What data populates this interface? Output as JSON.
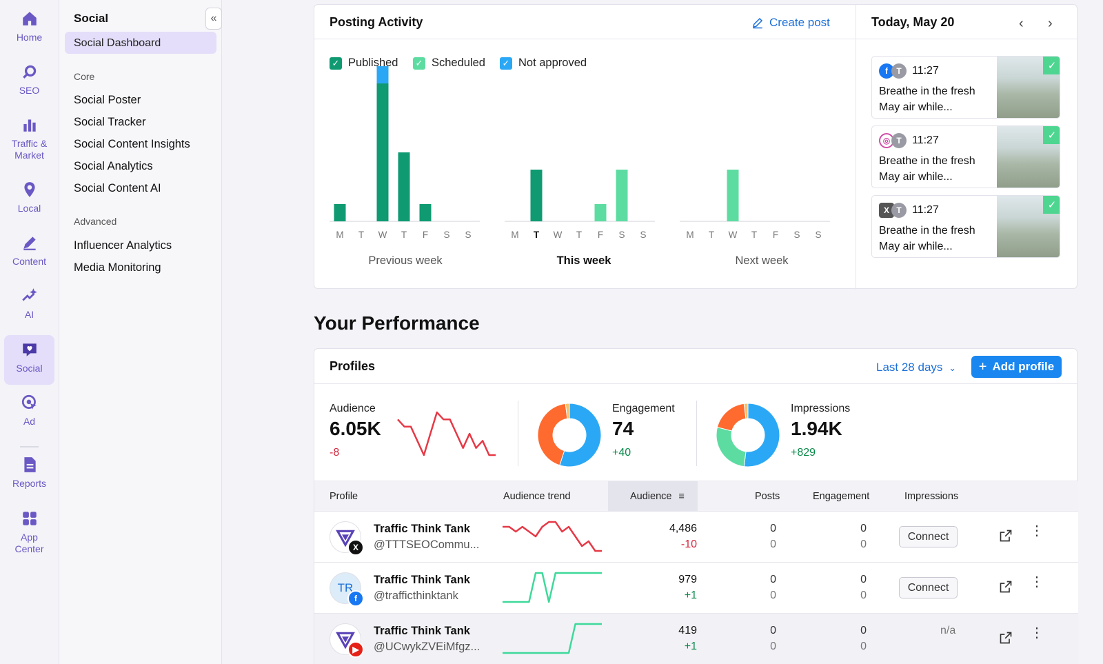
{
  "rail": {
    "items": [
      {
        "label": "Home",
        "icon": "home-icon"
      },
      {
        "label": "SEO",
        "icon": "seo-icon"
      },
      {
        "label": "Traffic & Market",
        "icon": "traffic-icon"
      },
      {
        "label": "Local",
        "icon": "pin-icon"
      },
      {
        "label": "Content",
        "icon": "pen-icon"
      },
      {
        "label": "AI",
        "icon": "sparkle-icon"
      },
      {
        "label": "Social",
        "icon": "heart-chat-icon"
      },
      {
        "label": "Ad",
        "icon": "ad-target-icon"
      },
      {
        "label": "Reports",
        "icon": "report-icon"
      },
      {
        "label": "App Center",
        "icon": "apps-grid-icon"
      }
    ]
  },
  "subnav": {
    "title": "Social",
    "active": "Social Dashboard",
    "core_label": "Core",
    "core": [
      "Social Poster",
      "Social Tracker",
      "Social Content Insights",
      "Social Analytics",
      "Social Content AI"
    ],
    "advanced_label": "Advanced",
    "advanced": [
      "Influencer Analytics",
      "Media Monitoring"
    ]
  },
  "posting": {
    "title": "Posting Activity",
    "create_post": "Create post",
    "legend": {
      "published": "Published",
      "scheduled": "Scheduled",
      "not_approved": "Not approved"
    },
    "weeks": [
      {
        "label": "Previous week",
        "days": [
          "M",
          "T",
          "W",
          "T",
          "F",
          "S",
          "S"
        ],
        "published": [
          1,
          0,
          8,
          4,
          1,
          0,
          0
        ],
        "scheduled": [
          0,
          0,
          0,
          0,
          0,
          0,
          0
        ],
        "not_approved": [
          0,
          0,
          1,
          0,
          0,
          0,
          0
        ]
      },
      {
        "label": "This week",
        "days": [
          "M",
          "T",
          "W",
          "T",
          "F",
          "S",
          "S"
        ],
        "published": [
          0,
          3,
          0,
          0,
          0,
          0,
          0
        ],
        "scheduled": [
          0,
          0,
          0,
          0,
          1,
          3,
          0
        ],
        "not_approved": [
          0,
          0,
          0,
          0,
          0,
          0,
          0
        ]
      },
      {
        "label": "Next week",
        "days": [
          "M",
          "T",
          "W",
          "T",
          "F",
          "S",
          "S"
        ],
        "published": [
          0,
          0,
          0,
          0,
          0,
          0,
          0
        ],
        "scheduled": [
          0,
          0,
          3,
          0,
          0,
          0,
          0
        ],
        "not_approved": [
          0,
          0,
          0,
          0,
          0,
          0,
          0
        ]
      }
    ],
    "colors": {
      "published": "#0f9a72",
      "scheduled": "#5ddca2",
      "not_approved": "#2ba8f5"
    }
  },
  "calendar": {
    "title": "Today, May 20",
    "posts": [
      {
        "network": "facebook",
        "time": "11:27",
        "text": "Breathe in the fresh May air while..."
      },
      {
        "network": "instagram",
        "time": "11:27",
        "text": "Breathe in the fresh May air while..."
      },
      {
        "network": "x",
        "time": "11:27",
        "text": "Breathe in the fresh May air while..."
      }
    ]
  },
  "performance": {
    "title": "Your Performance",
    "profiles_title": "Profiles",
    "period": "Last 28 days",
    "add_profile": "Add profile",
    "audience": {
      "label": "Audience",
      "value": "6.05K",
      "delta": "-8",
      "trend": [
        6,
        5,
        5,
        3,
        1,
        4,
        7,
        6,
        6,
        4,
        2,
        4,
        2,
        3,
        1,
        1
      ]
    },
    "engagement": {
      "label": "Engagement",
      "value": "74",
      "delta": "+40",
      "slices": [
        {
          "name": "a",
          "value": 55,
          "color": "#2ba8f5"
        },
        {
          "name": "b",
          "value": 43,
          "color": "#ff6a2e"
        },
        {
          "name": "c",
          "value": 2,
          "color": "#f5c16c"
        }
      ]
    },
    "impressions": {
      "label": "Impressions",
      "value": "1.94K",
      "delta": "+829",
      "slices": [
        {
          "name": "a",
          "value": 52,
          "color": "#2ba8f5"
        },
        {
          "name": "b",
          "value": 27,
          "color": "#5ddca2"
        },
        {
          "name": "c",
          "value": 19,
          "color": "#ff6a2e"
        },
        {
          "name": "d",
          "value": 2,
          "color": "#f5c16c"
        }
      ]
    },
    "columns": {
      "profile": "Profile",
      "trend": "Audience trend",
      "audience": "Audience",
      "posts": "Posts",
      "engagement": "Engagement",
      "impressions": "Impressions"
    },
    "rows": [
      {
        "name": "Traffic Think Tank",
        "handle": "@TTTSEOCommu...",
        "network": "x",
        "audience": "4,486",
        "audience_delta": "-10",
        "posts": "0",
        "posts_delta": "0",
        "engagement": "0",
        "engagement_delta": "0",
        "impressions_action": "Connect",
        "trend": [
          6,
          6,
          5,
          6,
          5,
          4,
          6,
          7,
          7,
          5,
          6,
          4,
          2,
          3,
          1,
          1
        ],
        "trend_color": "#e63946"
      },
      {
        "name": "Traffic Think Tank",
        "handle": "@trafficthinktank",
        "network": "facebook",
        "avatar_text": "TR",
        "audience": "979",
        "audience_delta": "+1",
        "posts": "0",
        "posts_delta": "0",
        "engagement": "0",
        "engagement_delta": "0",
        "impressions_action": "Connect",
        "trend": [
          0,
          0,
          0,
          0,
          0,
          5,
          5,
          0,
          5,
          5,
          5,
          5,
          5,
          5,
          5,
          5
        ],
        "trend_color": "#3ed99a"
      },
      {
        "name": "Traffic Think Tank",
        "handle": "@UCwykZVEiMfgz...",
        "network": "youtube",
        "audience": "419",
        "audience_delta": "+1",
        "posts": "0",
        "posts_delta": "0",
        "engagement": "0",
        "engagement_delta": "0",
        "impressions_text": "n/a",
        "trend": [
          0,
          0,
          0,
          0,
          0,
          0,
          0,
          0,
          0,
          0,
          0,
          5,
          5,
          5,
          5,
          5
        ],
        "trend_color": "#3ed99a"
      }
    ]
  }
}
